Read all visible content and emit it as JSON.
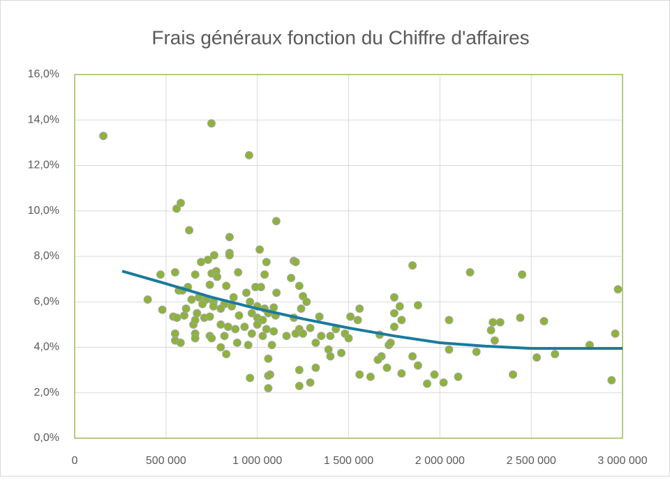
{
  "chart_data": {
    "type": "scatter",
    "title": "Frais généraux fonction du Chiffre d'affaires",
    "xlim": [
      0,
      3000000
    ],
    "xticks": [
      0,
      {
        "value": 500000,
        "label": "500 000"
      },
      {
        "value": 1000000,
        "label": "1 000 000"
      },
      {
        "value": 1500000,
        "label": "1 500 000"
      },
      {
        "value": 2000000,
        "label": "2 000 000"
      },
      {
        "value": 2500000,
        "label": "2 500 000"
      },
      {
        "value": 3000000,
        "label": "3 000 000"
      }
    ],
    "ylim": [
      0,
      16
    ],
    "yticks": [
      {
        "value": 0,
        "label": "0,0%"
      },
      {
        "value": 2,
        "label": "2,0%"
      },
      {
        "value": 4,
        "label": "4,0%"
      },
      {
        "value": 6,
        "label": "6,0%"
      },
      {
        "value": 8,
        "label": "8,0%"
      },
      {
        "value": 10,
        "label": "10,0%"
      },
      {
        "value": 12,
        "label": "12,0%"
      },
      {
        "value": 14,
        "label": "14,0%"
      },
      {
        "value": 16,
        "label": "16,0%"
      }
    ],
    "grid": true,
    "series": [
      {
        "color": "#8db33b",
        "x": [
          157000,
          749000,
          955000,
          1104000,
          558000,
          581000,
          627000,
          848000,
          1013000,
          848000,
          848000,
          764000,
          692000,
          730000,
          1050000,
          1200000,
          1210000,
          1850000,
          2165000,
          2450000,
          470000,
          550000,
          660000,
          750000,
          775000,
          780000,
          895000,
          1040000,
          1185000,
          2975000,
          1750000,
          1230000,
          1250000,
          1105000,
          1020000,
          990000,
          830000,
          740000,
          620000,
          570000,
          590000,
          400000,
          640000,
          680000,
          720000,
          760000,
          820000,
          870000,
          940000,
          960000,
          1000000,
          1040000,
          1090000,
          1270000,
          1240000,
          1560000,
          1780000,
          1880000,
          480000,
          600000,
          610000,
          670000,
          700000,
          760000,
          800000,
          860000,
          900000,
          970000,
          1000000,
          1030000,
          1060000,
          1100000,
          1200000,
          1340000,
          1510000,
          1550000,
          1750000,
          1790000,
          2050000,
          2290000,
          2330000,
          2440000,
          2570000,
          540000,
          560000,
          650000,
          660000,
          710000,
          740000,
          800000,
          840000,
          880000,
          930000,
          1000000,
          1050000,
          1090000,
          1230000,
          1290000,
          1350000,
          1400000,
          1430000,
          1480000,
          1500000,
          1750000,
          2280000,
          550000,
          660000,
          740000,
          820000,
          970000,
          1030000,
          1160000,
          1210000,
          1250000,
          1670000,
          2960000,
          550000,
          580000,
          660000,
          750000,
          800000,
          830000,
          890000,
          950000,
          1080000,
          1320000,
          1390000,
          1400000,
          1460000,
          1720000,
          1730000,
          2050000,
          2200000,
          2300000,
          2530000,
          2630000,
          2820000,
          1850000,
          1680000,
          1660000,
          1710000,
          1560000,
          1620000,
          1880000,
          1790000,
          1970000,
          1230000,
          1320000,
          960000,
          1060000,
          1070000,
          1060000,
          1230000,
          1290000,
          1060000,
          1930000,
          2020000,
          2100000,
          2400000,
          2940000
        ],
        "values": [
          13.3,
          13.85,
          12.45,
          9.55,
          10.1,
          10.35,
          9.15,
          8.85,
          8.3,
          8.15,
          8.05,
          8.05,
          7.75,
          7.85,
          7.75,
          7.8,
          7.75,
          7.6,
          7.3,
          7.2,
          7.2,
          7.3,
          7.2,
          7.25,
          7.35,
          7.1,
          7.3,
          7.2,
          7.05,
          6.55,
          6.2,
          6.7,
          6.25,
          6.4,
          6.65,
          6.65,
          6.7,
          6.75,
          6.65,
          6.5,
          6.5,
          6.1,
          6.1,
          6.2,
          6.1,
          6.0,
          5.9,
          6.2,
          6.4,
          6.0,
          5.8,
          5.7,
          5.75,
          6.0,
          5.7,
          5.7,
          5.8,
          5.85,
          5.65,
          5.4,
          5.7,
          5.5,
          5.9,
          5.8,
          5.7,
          5.8,
          5.4,
          5.5,
          5.3,
          5.2,
          5.5,
          5.4,
          5.3,
          5.35,
          5.35,
          5.2,
          5.5,
          5.2,
          5.2,
          5.1,
          5.1,
          5.3,
          5.15,
          5.35,
          5.3,
          5.0,
          5.2,
          5.3,
          5.35,
          5.0,
          4.9,
          4.8,
          4.9,
          5.0,
          4.8,
          4.7,
          4.8,
          4.85,
          4.5,
          4.5,
          4.8,
          4.6,
          4.4,
          4.9,
          4.75,
          4.6,
          4.6,
          4.5,
          4.5,
          4.6,
          4.5,
          4.5,
          4.6,
          4.6,
          4.55,
          4.6,
          4.3,
          4.2,
          4.4,
          4.4,
          4.0,
          3.7,
          4.2,
          4.1,
          4.1,
          4.2,
          3.9,
          3.6,
          3.75,
          4.1,
          4.2,
          3.9,
          3.8,
          4.3,
          3.55,
          3.7,
          4.1,
          3.6,
          3.6,
          3.45,
          3.1,
          2.8,
          2.7,
          3.2,
          2.85,
          2.8,
          3.0,
          3.1,
          2.65,
          2.75,
          2.8,
          2.2,
          2.3,
          2.45,
          3.5,
          2.4,
          2.45,
          2.7,
          2.8,
          2.55
        ]
      }
    ],
    "trendline": {
      "color": "#1a7a9c",
      "x": [
        260000,
        500000,
        750000,
        1000000,
        1250000,
        1500000,
        1750000,
        2000000,
        2250000,
        2500000,
        2750000,
        3000000
      ],
      "values": [
        7.35,
        6.8,
        6.2,
        5.7,
        5.25,
        4.85,
        4.5,
        4.2,
        4.05,
        3.95,
        3.95,
        3.95
      ]
    }
  }
}
